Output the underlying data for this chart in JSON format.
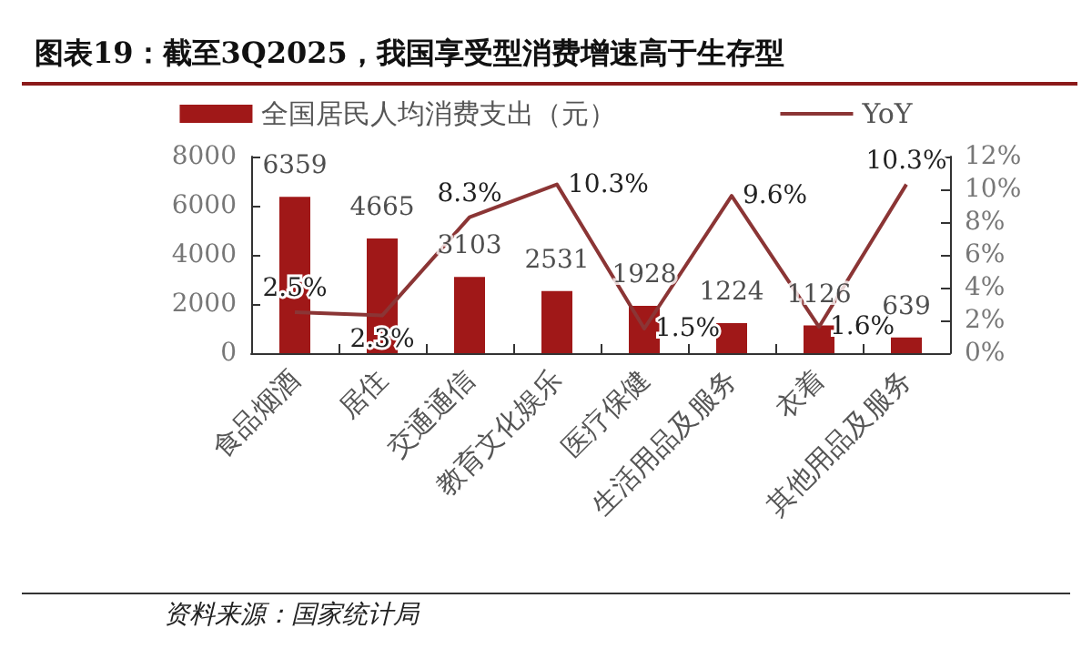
{
  "chart_data": {
    "type": "bar",
    "title": "图表19：截至3Q2025，我国享受型消费增速高于生存型",
    "categories": [
      "食品烟酒",
      "居住",
      "交通通信",
      "教育文化娱乐",
      "医疗保健",
      "生活用品及服务",
      "衣着",
      "其他用品及服务"
    ],
    "series": [
      {
        "name": "全国居民人均消费支出（元）",
        "color": "#a01818",
        "values": [
          6359,
          4665,
          3103,
          2531,
          1928,
          1224,
          1126,
          639
        ]
      },
      {
        "name": "YoY",
        "type": "line",
        "axis": "y2",
        "color": "#8b3535",
        "values": [
          2.5,
          2.3,
          8.3,
          10.3,
          1.5,
          9.6,
          1.6,
          10.3
        ],
        "value_labels": [
          "2.5%",
          "2.3%",
          "8.3%",
          "10.3%",
          "1.5%",
          "9.6%",
          "1.6%",
          "10.3%"
        ]
      }
    ],
    "data_labels": true,
    "ylim": [
      0,
      8000
    ],
    "yticks": [
      0,
      2000,
      4000,
      6000,
      8000
    ],
    "y2lim": [
      0,
      12
    ],
    "y2ticks": [
      {
        "value": 0,
        "label": "0%"
      },
      {
        "value": 2,
        "label": "2%"
      },
      {
        "value": 4,
        "label": "4%"
      },
      {
        "value": 6,
        "label": "6%"
      },
      {
        "value": 8,
        "label": "8%"
      },
      {
        "value": 10,
        "label": "10%"
      },
      {
        "value": 12,
        "label": "12%"
      }
    ],
    "legend": "top",
    "grid": false,
    "marker": "none",
    "annotations": [
      "资料来源：国家统计局"
    ]
  }
}
